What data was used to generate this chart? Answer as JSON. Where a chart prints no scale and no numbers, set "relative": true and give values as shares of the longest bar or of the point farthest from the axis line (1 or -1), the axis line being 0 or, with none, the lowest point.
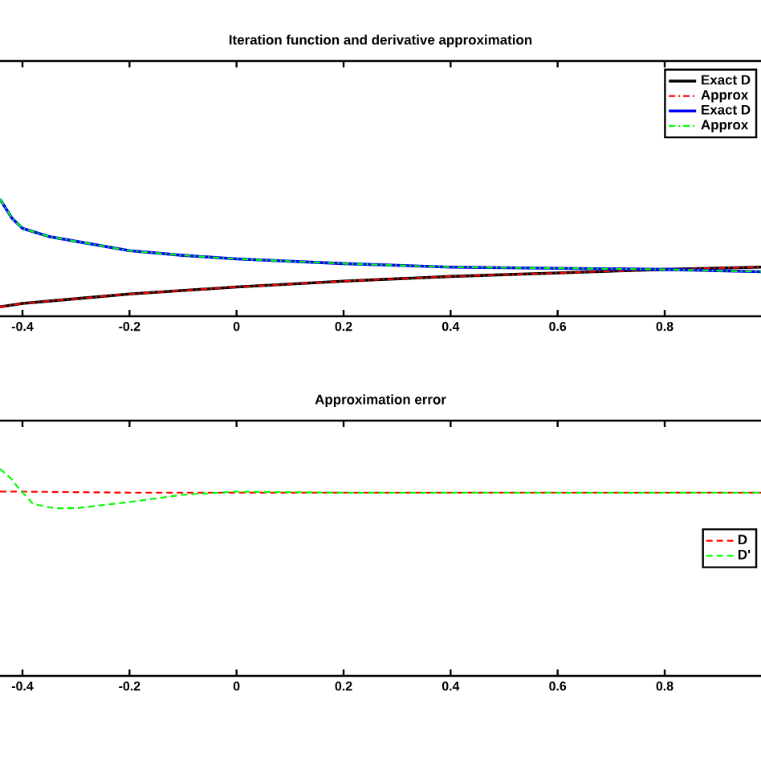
{
  "chart_data": [
    {
      "type": "line",
      "title": "Iteration function and derivative approximation",
      "relative": true,
      "xlim": [
        -0.442,
        0.98
      ],
      "xticks": [
        -0.4,
        -0.2,
        0,
        0.2,
        0.4,
        0.6,
        0.8
      ],
      "tick_labels": "x",
      "legend": "top right",
      "grid": false,
      "marker": "none",
      "series": [
        {
          "name": "Exact D",
          "color": "#000000",
          "line_style": "solid",
          "x": [
            -0.442,
            -0.4,
            -0.3,
            -0.2,
            -0.1,
            0,
            0.2,
            0.4,
            0.6,
            0.8,
            0.98
          ],
          "values": [
            0.08,
            0.11,
            0.15,
            0.19,
            0.22,
            0.25,
            0.3,
            0.34,
            0.37,
            0.4,
            0.42
          ]
        },
        {
          "name": "Approx",
          "color": "#ff0000",
          "line_style": "dashdot",
          "x": [
            -0.442,
            -0.4,
            -0.3,
            -0.2,
            -0.1,
            0,
            0.2,
            0.4,
            0.6,
            0.8,
            0.98
          ],
          "values": [
            0.08,
            0.11,
            0.15,
            0.19,
            0.22,
            0.25,
            0.3,
            0.34,
            0.37,
            0.4,
            0.42
          ]
        },
        {
          "name": "Exact D",
          "color": "#0000ff",
          "line_style": "solid",
          "x": [
            -0.442,
            -0.42,
            -0.4,
            -0.35,
            -0.3,
            -0.2,
            -0.1,
            0,
            0.2,
            0.4,
            0.6,
            0.8,
            0.98
          ],
          "values": [
            1.0,
            0.84,
            0.75,
            0.68,
            0.64,
            0.56,
            0.52,
            0.49,
            0.45,
            0.42,
            0.41,
            0.4,
            0.38
          ]
        },
        {
          "name": "Approx",
          "color": "#00ff00",
          "line_style": "dashdot",
          "x": [
            -0.442,
            -0.42,
            -0.4,
            -0.35,
            -0.3,
            -0.2,
            -0.1,
            0,
            0.2,
            0.4,
            0.6,
            0.8,
            0.98
          ],
          "values": [
            1.0,
            0.84,
            0.75,
            0.68,
            0.64,
            0.56,
            0.52,
            0.49,
            0.45,
            0.42,
            0.41,
            0.4,
            0.38
          ]
        }
      ]
    },
    {
      "type": "line",
      "title": "Approximation error",
      "relative": true,
      "xlim": [
        -0.442,
        0.98
      ],
      "xticks": [
        -0.4,
        -0.2,
        0,
        0.2,
        0.4,
        0.6,
        0.8
      ],
      "tick_labels": "x",
      "legend": "right",
      "grid": false,
      "marker": "none",
      "series": [
        {
          "name": "D",
          "color": "#ff0000",
          "line_style": "dashed",
          "x": [
            -0.442,
            -0.42,
            -0.4,
            -0.2,
            0,
            0.4,
            0.98
          ],
          "values": [
            0.89,
            0.89,
            0.89,
            0.885,
            0.885,
            0.885,
            0.885
          ]
        },
        {
          "name": "D'",
          "color": "#00ff00",
          "line_style": "dashed",
          "x": [
            -0.442,
            -0.42,
            -0.41,
            -0.38,
            -0.34,
            -0.3,
            -0.2,
            -0.1,
            0,
            0.2,
            0.98
          ],
          "values": [
            1.0,
            0.95,
            0.915,
            0.83,
            0.81,
            0.81,
            0.84,
            0.875,
            0.89,
            0.885,
            0.885
          ]
        }
      ]
    }
  ]
}
